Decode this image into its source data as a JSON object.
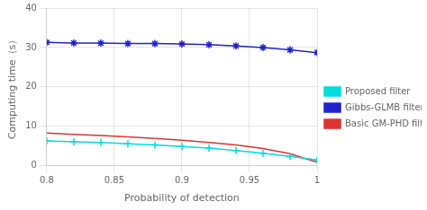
{
  "chart_data": {
    "type": "line",
    "x": [
      0.8,
      0.82,
      0.84,
      0.86,
      0.88,
      0.9,
      0.92,
      0.94,
      0.96,
      0.98,
      1
    ],
    "series": [
      {
        "name": "Proposed filter",
        "color": "#00DDDD",
        "marker": "plus",
        "values": [
          6.3,
          6.1,
          5.9,
          5.6,
          5.3,
          4.9,
          4.5,
          3.9,
          3.2,
          2.4,
          1.5
        ]
      },
      {
        "name": "Gibbs-GLMB filter",
        "color": "#2222CC",
        "marker": "star",
        "values": [
          31.3,
          31.15,
          31.1,
          31.0,
          31.0,
          30.9,
          30.7,
          30.4,
          30.0,
          29.4,
          28.7
        ]
      },
      {
        "name": "Basic GM-PHD filter",
        "color": "#DD3333",
        "values": [
          8.3,
          8.0,
          7.7,
          7.35,
          6.95,
          6.5,
          5.95,
          5.3,
          4.4,
          3.1,
          0.9
        ]
      }
    ],
    "xlabel": "Probability of detection",
    "ylabel": "Computing time（s）",
    "xlim": [
      0.8,
      1
    ],
    "ylim": [
      0,
      40
    ],
    "xticks": [
      0.8,
      0.85,
      0.9,
      0.95,
      1
    ],
    "yticks": [
      0,
      10,
      20,
      30,
      40
    ],
    "grid": true,
    "legend": "right"
  }
}
